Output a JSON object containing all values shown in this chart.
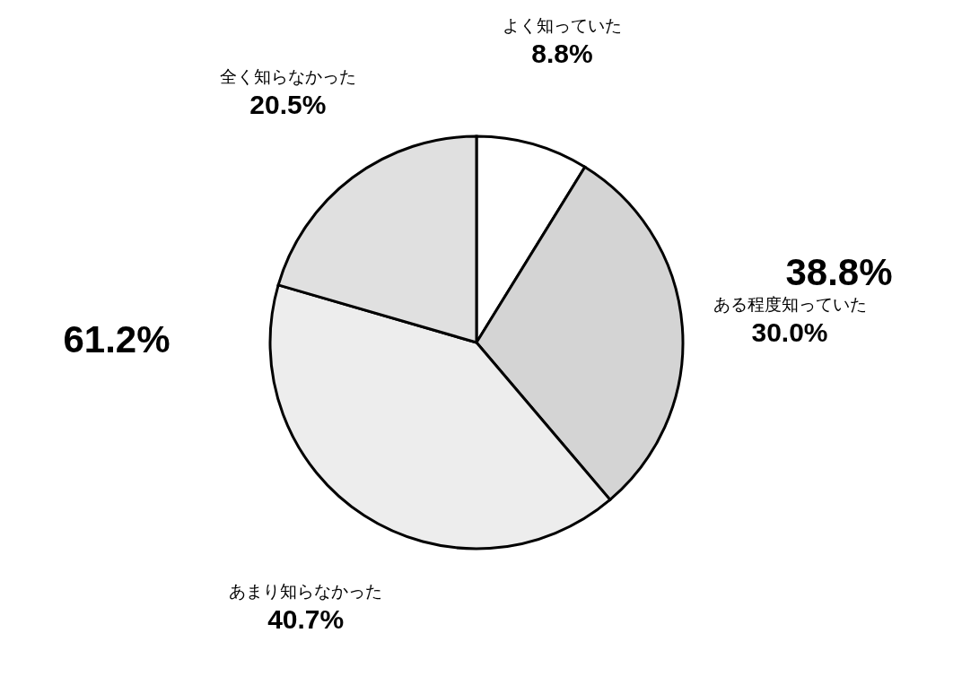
{
  "chart_data": {
    "type": "pie",
    "categories": [
      "よく知っていた",
      "ある程度知っていた",
      "あまり知らなかった",
      "全く知らなかった"
    ],
    "values": [
      8.8,
      30.0,
      40.7,
      20.5
    ],
    "value_labels": [
      "8.8%",
      "30.0%",
      "40.7%",
      "20.5%"
    ],
    "colors": [
      "#ffffff",
      "#d4d4d4",
      "#ededed",
      "#e0e0e0"
    ],
    "annotations": [
      "38.8%",
      "61.2%"
    ],
    "legend": false
  }
}
